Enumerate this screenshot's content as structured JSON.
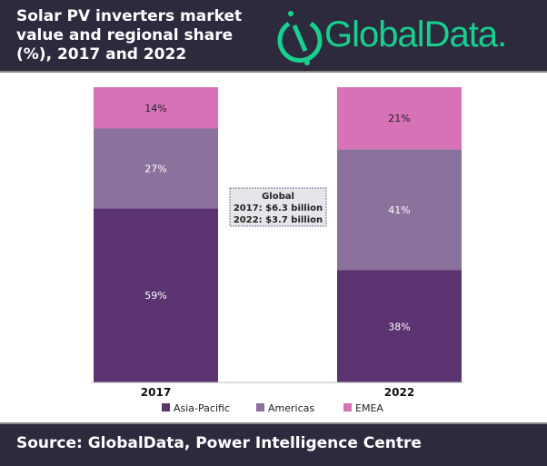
{
  "header": {
    "title": "Solar PV inverters market value and regional share (%), 2017 and 2022",
    "logo": "GlobalData."
  },
  "footer": {
    "source": "Source: GlobalData, Power Intelligence Centre"
  },
  "annotation": {
    "lines": [
      "Global",
      "2017: $6.3 billion",
      "2022: $3.7 billion"
    ]
  },
  "chart_data": {
    "type": "bar",
    "stacked": true,
    "unit": "%",
    "categories": [
      "2017",
      "2022"
    ],
    "series": [
      {
        "name": "Asia-Pacific",
        "values": [
          59,
          38
        ],
        "color": "#5a3370"
      },
      {
        "name": "Americas",
        "values": [
          27,
          41
        ],
        "color": "#8a729c"
      },
      {
        "name": "EMEA",
        "values": [
          14,
          21
        ],
        "color": "#d872b6"
      }
    ],
    "ylim": [
      0,
      100
    ],
    "legend": "bottom",
    "grid": false
  }
}
